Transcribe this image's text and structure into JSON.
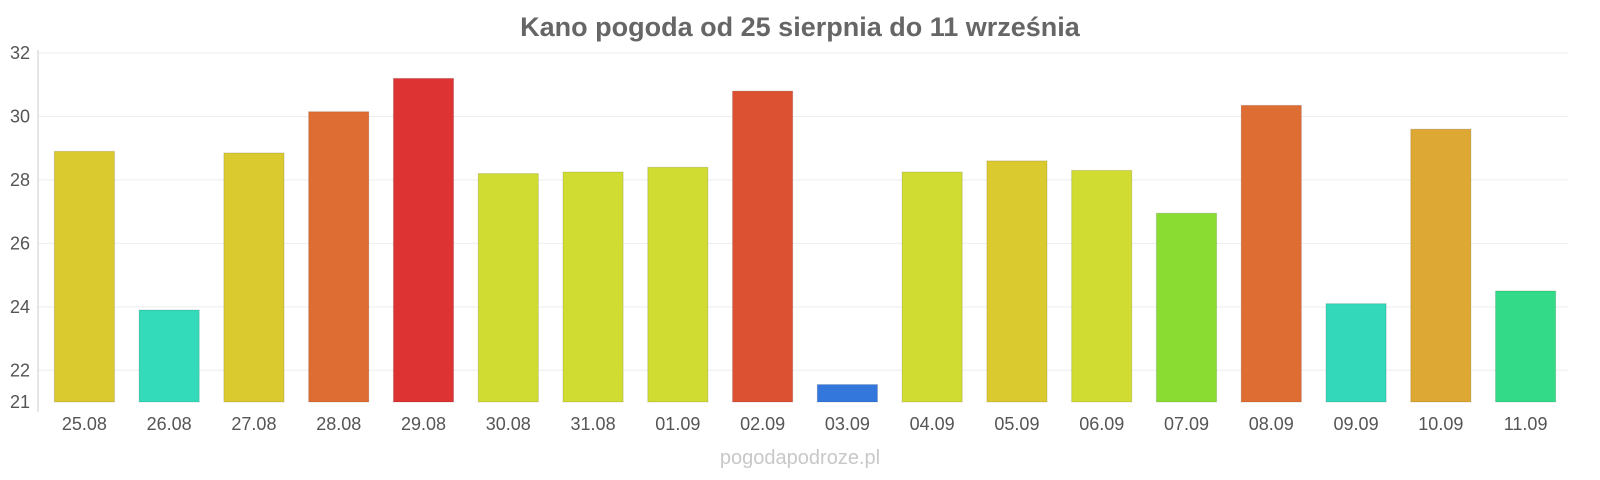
{
  "chart_data": {
    "type": "bar",
    "title": "Kano pogoda od 25 sierpnia do 11 września",
    "xlabel": "",
    "ylabel": "",
    "ylim": [
      21,
      32
    ],
    "yticks": [
      21,
      22,
      24,
      26,
      28,
      30,
      32
    ],
    "grid": true,
    "categories": [
      "25.08",
      "26.08",
      "27.08",
      "28.08",
      "29.08",
      "30.08",
      "31.08",
      "01.09",
      "02.09",
      "03.09",
      "04.09",
      "05.09",
      "06.09",
      "07.09",
      "08.09",
      "09.09",
      "10.09",
      "11.09"
    ],
    "values": [
      28.9,
      23.9,
      28.85,
      30.15,
      31.2,
      28.2,
      28.25,
      28.4,
      30.8,
      21.55,
      28.25,
      28.6,
      28.3,
      26.95,
      30.35,
      24.1,
      29.6,
      24.5
    ],
    "colors": [
      "#dbc930",
      "#33dbbb",
      "#dbc930",
      "#de6d33",
      "#dd3333",
      "#d0dc32",
      "#d0dc32",
      "#d0dc32",
      "#dd5133",
      "#3377dd",
      "#d0dc32",
      "#dbc930",
      "#d0dc32",
      "#8adc33",
      "#de6d33",
      "#33d8bb",
      "#dda833",
      "#33db88"
    ]
  },
  "watermark": "pogodapodroze.pl"
}
